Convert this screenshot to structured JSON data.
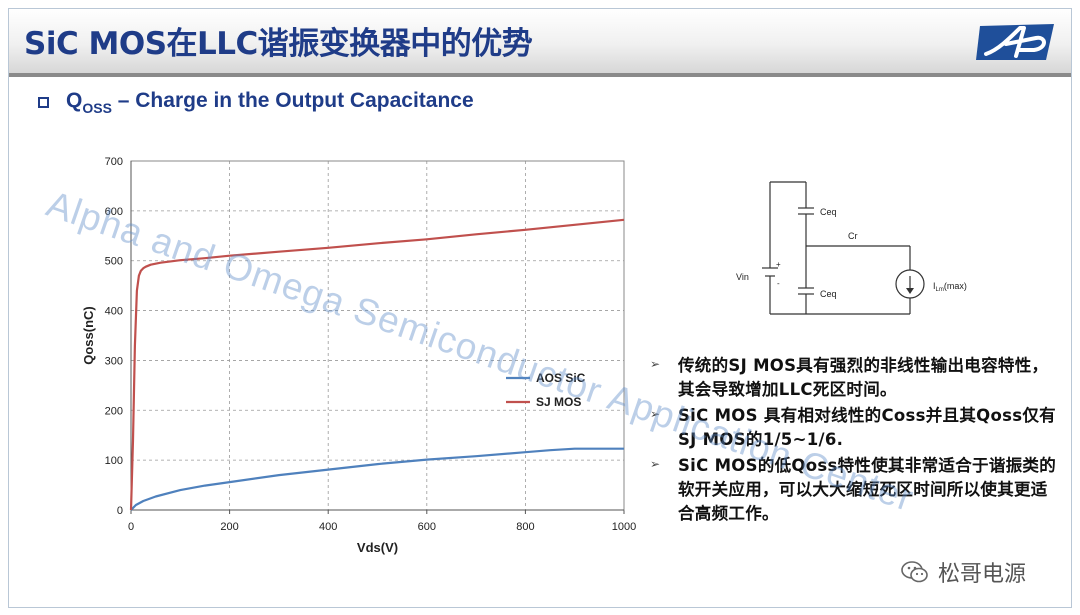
{
  "title": "SiC MOS在LLC谐振变换器中的优势",
  "subheading": {
    "q_main": "Q",
    "q_sub": "OSS",
    "rest": " – Charge in the Output Capacitance"
  },
  "chart_data": {
    "type": "line",
    "xlabel": "Vds(V)",
    "ylabel": "Qoss(nC)",
    "xlim": [
      0,
      1000
    ],
    "ylim": [
      0,
      700
    ],
    "xticks": [
      0,
      200,
      400,
      600,
      800,
      1000
    ],
    "yticks": [
      0,
      100,
      200,
      300,
      400,
      500,
      600,
      700
    ],
    "grid": "dashed",
    "legend": "center-right",
    "series": [
      {
        "name": "AOS SiC",
        "color": "#4f81bd",
        "x": [
          0,
          10,
          25,
          50,
          100,
          150,
          200,
          300,
          400,
          500,
          600,
          700,
          800,
          850,
          900,
          950,
          1000
        ],
        "y": [
          0,
          10,
          18,
          27,
          40,
          49,
          56,
          70,
          81,
          92,
          101,
          108,
          116,
          120,
          123,
          123,
          123
        ]
      },
      {
        "name": "SJ MOS",
        "color": "#c0504d",
        "x": [
          0,
          4,
          8,
          12,
          16,
          20,
          25,
          30,
          40,
          60,
          100,
          150,
          200,
          300,
          400,
          500,
          600,
          700,
          800,
          900,
          1000
        ],
        "y": [
          0,
          140,
          330,
          440,
          470,
          480,
          485,
          488,
          492,
          496,
          501,
          505,
          510,
          518,
          526,
          535,
          543,
          553,
          562,
          572,
          582
        ]
      }
    ]
  },
  "circuit": {
    "vin_label": "Vin",
    "plus": "+",
    "minus": "-",
    "ceq_top": "Ceq",
    "ceq_bottom": "Ceq",
    "cr_label": "Cr",
    "im_label_main": "I",
    "im_label_sub": "Lm",
    "im_label_tail": "(max)"
  },
  "notes": [
    "传统的SJ MOS具有强烈的非线性输出电容特性，其会导致增加LLC死区时间。",
    "SiC MOS 具有相对线性的Coss并且其Qoss仅有SJ MOS的1/5~1/6.",
    "SiC MOS的低Qoss特性使其非常适合于谐振类的软开关应用，可以大大缩短死区时间所以使其更适合高频工作。"
  ],
  "watermark": "Alpha and Omega Semiconductor Application Center",
  "brand": "松哥电源",
  "colors": {
    "title": "#1f3c88",
    "sic": "#4f81bd",
    "sj": "#c0504d",
    "logo": "#1f4f9a"
  },
  "icons": {
    "bullet": "square-bullet-icon",
    "note": "arrow-right-icon",
    "brand": "wechat-icon",
    "logo": "aos-logo"
  }
}
